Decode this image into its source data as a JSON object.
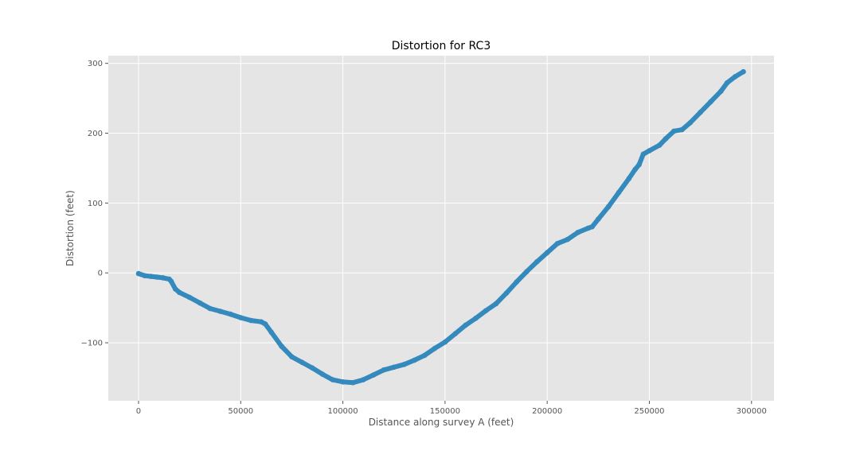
{
  "chart_data": {
    "type": "scatter",
    "title": "Distortion for RC3",
    "xlabel": "Distance along survey A (feet)",
    "ylabel": "Distortion (feet)",
    "xlim": [
      -14800,
      311000
    ],
    "ylim": [
      -183,
      311
    ],
    "xticks": [
      0,
      50000,
      100000,
      150000,
      200000,
      250000,
      300000
    ],
    "xtick_labels": [
      "0",
      "50000",
      "100000",
      "150000",
      "200000",
      "250000",
      "300000"
    ],
    "yticks": [
      -100,
      0,
      100,
      200,
      300
    ],
    "ytick_labels": [
      "−100",
      "0",
      "100",
      "200",
      "300"
    ],
    "grid": true,
    "style": {
      "background": "#e5e5e5",
      "grid_color": "#ffffff",
      "marker_color": "#348abd"
    },
    "series": [
      {
        "x": [
          0,
          3000,
          6000,
          9000,
          12000,
          15000,
          16000,
          18000,
          20000,
          25000,
          30000,
          35000,
          40000,
          45000,
          50000,
          55000,
          60000,
          62000,
          65000,
          70000,
          75000,
          80000,
          85000,
          90000,
          95000,
          100000,
          105000,
          110000,
          115000,
          120000,
          125000,
          130000,
          135000,
          140000,
          145000,
          150000,
          155000,
          160000,
          165000,
          170000,
          175000,
          180000,
          185000,
          190000,
          195000,
          200000,
          205000,
          210000,
          215000,
          220000,
          222000,
          225000,
          230000,
          235000,
          240000,
          243000,
          245000,
          247000,
          250000,
          255000,
          258000,
          262000,
          266000,
          270000,
          275000,
          280000,
          285000,
          288000,
          292000,
          296000
        ],
        "y": [
          -1,
          -4,
          -5,
          -6,
          -7,
          -9,
          -12,
          -23,
          -28,
          -35,
          -43,
          -51,
          -55,
          -59,
          -64,
          -68,
          -70,
          -73,
          -85,
          -105,
          -120,
          -128,
          -136,
          -145,
          -153,
          -156,
          -157,
          -153,
          -146,
          -139,
          -135,
          -131,
          -125,
          -118,
          -108,
          -99,
          -87,
          -75,
          -65,
          -54,
          -44,
          -29,
          -13,
          2,
          16,
          29,
          42,
          48,
          58,
          64,
          66,
          77,
          95,
          115,
          135,
          148,
          155,
          170,
          175,
          183,
          192,
          203,
          205,
          215,
          230,
          245,
          260,
          272,
          281,
          288
        ]
      }
    ]
  }
}
